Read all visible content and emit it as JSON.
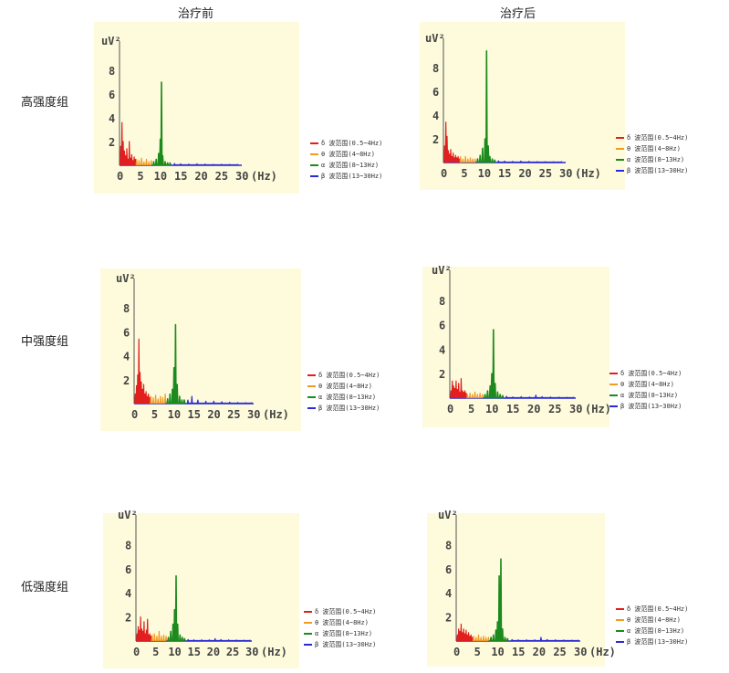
{
  "headers": {
    "before": "治疗前",
    "after": "治疗后"
  },
  "row_labels": [
    "高强度组",
    "中强度组",
    "低强度组"
  ],
  "colors": {
    "delta": "#e21e1e",
    "theta": "#f29a22",
    "alpha": "#1c8a1c",
    "beta": "#2a2ad6"
  },
  "chart_data": [
    {
      "type": "line",
      "group": "高强度组",
      "phase": "治疗前",
      "ylabel": "uV²",
      "xlabel": "(Hz)",
      "xticks": [
        "0",
        "5",
        "10",
        "15",
        "20",
        "25",
        "30"
      ],
      "yticks": [
        "2",
        "4",
        "6",
        "8"
      ],
      "xlim": [
        0,
        30
      ],
      "ylim": [
        0,
        10
      ],
      "legend": [
        "δ 波范围(0.5~4Hz)",
        "θ 波范围(4~8Hz)",
        "α 波范围(8~13Hz)",
        "β 波范围(13~30Hz)"
      ],
      "series": [
        {
          "band": "delta",
          "x": [
            0.3,
            0.6,
            0.9,
            1.2,
            1.5,
            1.8,
            2.1,
            2.4,
            2.7,
            3.0,
            3.3,
            3.6,
            3.9
          ],
          "y": [
            1.6,
            3.6,
            2.0,
            1.2,
            0.8,
            1.4,
            0.5,
            2.0,
            0.6,
            0.9,
            0.4,
            0.7,
            0.5
          ]
        },
        {
          "band": "theta",
          "x": [
            4.2,
            4.8,
            5.4,
            6.0,
            6.6,
            7.2,
            7.8
          ],
          "y": [
            0.5,
            0.4,
            0.6,
            0.3,
            0.5,
            0.3,
            0.4
          ]
        },
        {
          "band": "alpha",
          "x": [
            8.4,
            9.0,
            9.6,
            10.0,
            10.3,
            10.6,
            11.2,
            11.8,
            12.4
          ],
          "y": [
            0.3,
            0.5,
            1.0,
            2.2,
            7.0,
            0.8,
            0.3,
            0.2,
            0.2
          ]
        },
        {
          "band": "beta",
          "x": [
            13.5,
            15,
            17,
            19,
            21,
            23,
            25,
            27,
            29
          ],
          "y": [
            0.15,
            0.12,
            0.1,
            0.12,
            0.1,
            0.08,
            0.08,
            0.07,
            0.07
          ]
        }
      ]
    },
    {
      "type": "line",
      "group": "高强度组",
      "phase": "治疗后",
      "ylabel": "uV²",
      "xlabel": "(Hz)",
      "xticks": [
        "0",
        "5",
        "10",
        "15",
        "20",
        "25",
        "30"
      ],
      "yticks": [
        "2",
        "4",
        "6",
        "8"
      ],
      "xlim": [
        0,
        30
      ],
      "ylim": [
        0,
        10
      ],
      "legend": [
        "δ 波范围(0.5~4Hz)",
        "θ 波范围(4~8Hz)",
        "α 波范围(8~13Hz)",
        "β 波范围(13~30Hz)"
      ],
      "series": [
        {
          "band": "delta",
          "x": [
            0.3,
            0.6,
            0.9,
            1.2,
            1.5,
            1.8,
            2.1,
            2.4,
            2.7,
            3.0,
            3.3,
            3.6,
            3.9
          ],
          "y": [
            1.4,
            3.4,
            2.2,
            1.0,
            0.7,
            1.1,
            0.5,
            0.8,
            0.4,
            0.6,
            0.4,
            0.5,
            0.3
          ]
        },
        {
          "band": "theta",
          "x": [
            4.2,
            4.8,
            5.4,
            6.0,
            6.6,
            7.2,
            7.8
          ],
          "y": [
            0.5,
            0.3,
            0.5,
            0.3,
            0.4,
            0.3,
            0.3
          ]
        },
        {
          "band": "alpha",
          "x": [
            8.4,
            9.0,
            9.6,
            10.2,
            10.6,
            11.0,
            11.4,
            12.0,
            12.6
          ],
          "y": [
            0.3,
            0.6,
            1.2,
            2.0,
            9.4,
            1.4,
            0.5,
            0.3,
            0.2
          ]
        },
        {
          "band": "beta",
          "x": [
            13.5,
            15,
            17,
            19,
            21,
            23,
            25,
            27,
            29
          ],
          "y": [
            0.15,
            0.12,
            0.1,
            0.12,
            0.1,
            0.08,
            0.08,
            0.07,
            0.07
          ]
        }
      ]
    },
    {
      "type": "line",
      "group": "中强度组",
      "phase": "治疗前",
      "ylabel": "uV²",
      "xlabel": "(Hz)",
      "xticks": [
        "0",
        "5",
        "10",
        "15",
        "20",
        "25",
        "30"
      ],
      "yticks": [
        "2",
        "4",
        "6",
        "8"
      ],
      "xlim": [
        0,
        30
      ],
      "ylim": [
        0,
        10
      ],
      "legend": [
        "δ 波范围(0.5~4Hz)",
        "θ 波范围(4~8Hz)",
        "α 波范围(8~13Hz)",
        "β 波范围(13~30Hz)"
      ],
      "series": [
        {
          "band": "delta",
          "x": [
            0.3,
            0.6,
            0.9,
            1.2,
            1.5,
            1.8,
            2.1,
            2.4,
            2.7,
            3.0,
            3.3,
            3.6,
            3.9
          ],
          "y": [
            0.8,
            1.5,
            2.4,
            5.4,
            2.6,
            1.8,
            1.2,
            1.6,
            0.8,
            1.0,
            0.6,
            0.8,
            0.5
          ]
        },
        {
          "band": "theta",
          "x": [
            4.2,
            4.8,
            5.4,
            6.0,
            6.6,
            7.2,
            7.8
          ],
          "y": [
            0.6,
            0.5,
            0.7,
            0.4,
            0.6,
            0.5,
            0.8
          ]
        },
        {
          "band": "alpha",
          "x": [
            8.4,
            9.0,
            9.6,
            10.0,
            10.4,
            10.8,
            11.4,
            12.0,
            12.6
          ],
          "y": [
            0.4,
            0.8,
            1.2,
            3.0,
            6.6,
            1.6,
            0.6,
            0.3,
            0.3
          ]
        },
        {
          "band": "beta",
          "x": [
            13.5,
            14.5,
            16,
            18,
            20,
            22,
            24,
            26,
            28,
            29.5
          ],
          "y": [
            0.3,
            0.6,
            0.3,
            0.2,
            0.2,
            0.15,
            0.12,
            0.1,
            0.08,
            0.08
          ]
        }
      ]
    },
    {
      "type": "line",
      "group": "中强度组",
      "phase": "治疗后",
      "ylabel": "uV²",
      "xlabel": "(Hz)",
      "xticks": [
        "0",
        "5",
        "10",
        "15",
        "20",
        "25",
        "30"
      ],
      "yticks": [
        "2",
        "4",
        "6",
        "8"
      ],
      "xlim": [
        0,
        30
      ],
      "ylim": [
        0,
        10
      ],
      "legend": [
        "δ 波范围(0.5~4Hz)",
        "θ 波范围(4~8Hz)",
        "α 波范围(8~13Hz)",
        "β 波范围(13~30Hz)"
      ],
      "series": [
        {
          "band": "delta",
          "x": [
            0.3,
            0.6,
            0.9,
            1.2,
            1.5,
            1.8,
            2.1,
            2.4,
            2.7,
            3.0,
            3.3,
            3.6,
            3.9
          ],
          "y": [
            0.6,
            1.4,
            1.0,
            0.8,
            1.4,
            0.7,
            1.2,
            0.5,
            1.6,
            0.6,
            0.5,
            0.6,
            0.4
          ]
        },
        {
          "band": "theta",
          "x": [
            4.2,
            4.8,
            5.4,
            6.0,
            6.6,
            7.2,
            7.8
          ],
          "y": [
            0.3,
            0.4,
            0.3,
            0.5,
            0.3,
            0.4,
            0.3
          ]
        },
        {
          "band": "alpha",
          "x": [
            8.4,
            9.0,
            9.6,
            10.0,
            10.4,
            10.8,
            11.4,
            12.0,
            12.6
          ],
          "y": [
            0.3,
            0.6,
            1.0,
            2.0,
            5.6,
            1.2,
            0.5,
            0.3,
            0.2
          ]
        },
        {
          "band": "beta",
          "x": [
            13.5,
            15,
            17,
            19,
            20.5,
            22,
            24,
            26,
            28,
            29.5
          ],
          "y": [
            0.15,
            0.1,
            0.12,
            0.1,
            0.25,
            0.12,
            0.1,
            0.08,
            0.07,
            0.07
          ]
        }
      ]
    },
    {
      "type": "line",
      "group": "低强度组",
      "phase": "治疗前",
      "ylabel": "uV²",
      "xlabel": "(Hz)",
      "xticks": [
        "0",
        "5",
        "10",
        "15",
        "20",
        "25",
        "30"
      ],
      "yticks": [
        "2",
        "4",
        "6",
        "8"
      ],
      "xlim": [
        0,
        30
      ],
      "ylim": [
        0,
        10
      ],
      "legend": [
        "δ 波范围(0.5~4Hz)",
        "θ 波范围(4~8Hz)",
        "α 波范围(8~13Hz)",
        "β 波范围(13~30Hz)"
      ],
      "series": [
        {
          "band": "delta",
          "x": [
            0.3,
            0.6,
            0.9,
            1.2,
            1.5,
            1.8,
            2.1,
            2.4,
            2.7,
            3.0,
            3.3,
            3.6,
            3.9
          ],
          "y": [
            0.6,
            1.2,
            0.9,
            2.0,
            1.0,
            0.8,
            1.6,
            0.6,
            0.9,
            1.8,
            0.5,
            0.6,
            0.4
          ]
        },
        {
          "band": "theta",
          "x": [
            4.2,
            4.8,
            5.4,
            6.0,
            6.6,
            7.2,
            7.8
          ],
          "y": [
            0.5,
            0.6,
            0.4,
            0.8,
            0.4,
            0.5,
            0.4
          ]
        },
        {
          "band": "alpha",
          "x": [
            8.4,
            9.0,
            9.6,
            10.0,
            10.4,
            10.8,
            11.4,
            12.0,
            12.6
          ],
          "y": [
            0.3,
            0.8,
            1.4,
            2.6,
            5.4,
            1.4,
            0.5,
            0.3,
            0.2
          ]
        },
        {
          "band": "beta",
          "x": [
            13.5,
            15,
            17,
            19,
            20.5,
            22,
            24,
            26,
            28,
            29.5
          ],
          "y": [
            0.12,
            0.1,
            0.1,
            0.1,
            0.2,
            0.12,
            0.1,
            0.08,
            0.07,
            0.07
          ]
        }
      ]
    },
    {
      "type": "line",
      "group": "低强度组",
      "phase": "治疗后",
      "ylabel": "uV²",
      "xlabel": "(Hz)",
      "xticks": [
        "0",
        "5",
        "10",
        "15",
        "20",
        "25",
        "30"
      ],
      "yticks": [
        "2",
        "4",
        "6",
        "8"
      ],
      "xlim": [
        0,
        30
      ],
      "ylim": [
        0,
        10
      ],
      "legend": [
        "δ 波范围(0.5~4Hz)",
        "θ 波范围(4~8Hz)",
        "α 波范围(8~13Hz)",
        "β 波范围(13~30Hz)"
      ],
      "series": [
        {
          "band": "delta",
          "x": [
            0.3,
            0.6,
            0.9,
            1.2,
            1.5,
            1.8,
            2.1,
            2.4,
            2.7,
            3.0,
            3.3,
            3.6,
            3.9
          ],
          "y": [
            0.5,
            1.0,
            0.8,
            1.4,
            0.7,
            1.0,
            0.6,
            0.9,
            0.5,
            0.7,
            0.4,
            0.5,
            0.3
          ]
        },
        {
          "band": "theta",
          "x": [
            4.2,
            4.8,
            5.4,
            6.0,
            6.6,
            7.2,
            7.8
          ],
          "y": [
            0.4,
            0.3,
            0.5,
            0.3,
            0.4,
            0.3,
            0.3
          ]
        },
        {
          "band": "alpha",
          "x": [
            8.4,
            9.0,
            9.6,
            10.0,
            10.4,
            10.8,
            11.2,
            11.8,
            12.4
          ],
          "y": [
            0.3,
            0.5,
            0.9,
            1.6,
            5.4,
            6.8,
            1.0,
            0.3,
            0.2
          ]
        },
        {
          "band": "beta",
          "x": [
            13.5,
            15,
            17,
            19,
            20.5,
            22,
            24,
            26,
            28,
            29.5
          ],
          "y": [
            0.12,
            0.1,
            0.1,
            0.1,
            0.3,
            0.12,
            0.1,
            0.08,
            0.07,
            0.07
          ]
        }
      ]
    }
  ]
}
